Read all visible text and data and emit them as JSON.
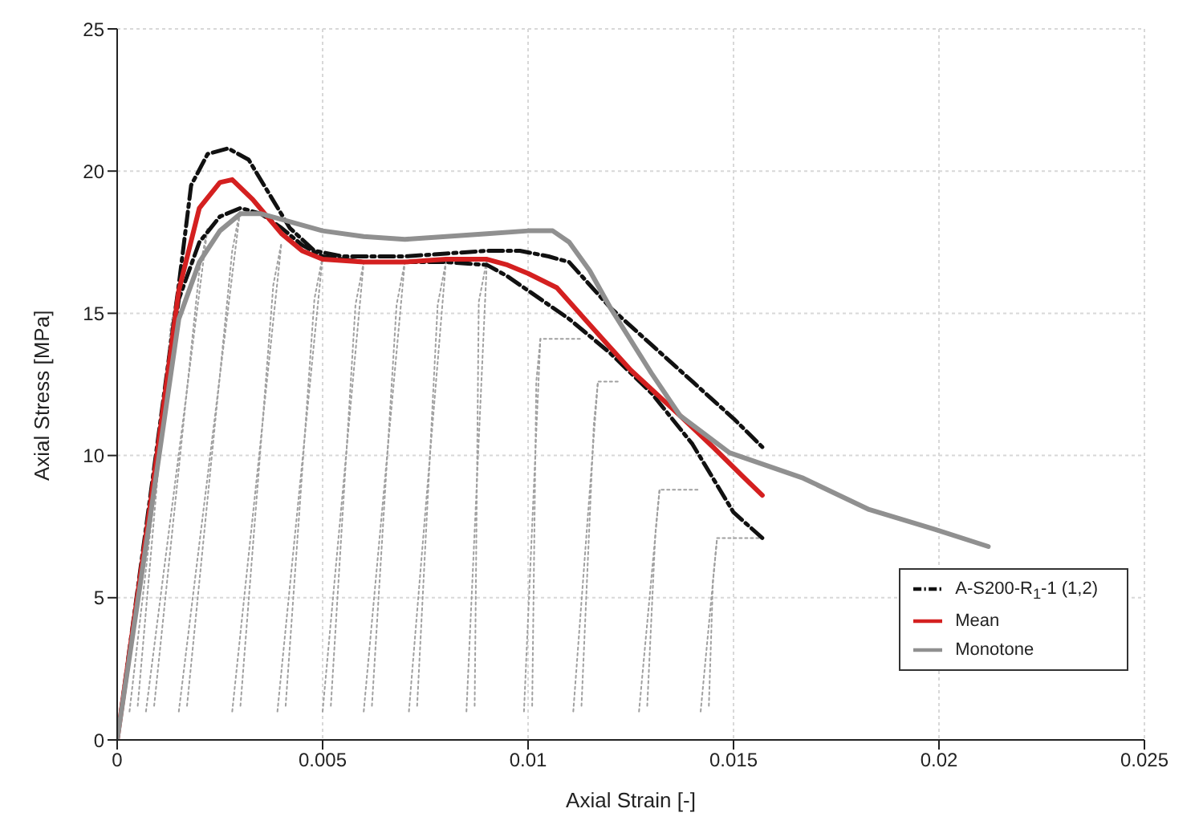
{
  "chart_data": {
    "type": "line",
    "xlabel": "Axial Strain [-]",
    "ylabel": "Axial Stress [MPa]",
    "xlim": [
      0,
      0.025
    ],
    "xticks": [
      0,
      0.005,
      0.01,
      0.015,
      0.02,
      0.025
    ],
    "ylim": [
      0,
      25
    ],
    "yticks": [
      0,
      5,
      10,
      15,
      20,
      25
    ],
    "grid": true,
    "legend": "bottom right",
    "marker": "none",
    "series": [
      {
        "color": "#a0a0a0",
        "line_style": "dotted",
        "x": [
          0.0003,
          0.0015
        ],
        "values": [
          1,
          16
        ]
      },
      {
        "color": "#a0a0a0",
        "line_style": "dotted",
        "x": [
          0.0005,
          0.0013,
          0.0015
        ],
        "values": [
          1.2,
          14.5,
          16
        ]
      },
      {
        "color": "#a0a0a0",
        "line_style": "dotted",
        "x": [
          0.0007,
          0.0022
        ],
        "values": [
          1,
          18
        ]
      },
      {
        "color": "#a0a0a0",
        "line_style": "dotted",
        "x": [
          0.0009,
          0.002,
          0.0022
        ],
        "values": [
          1.2,
          16.5,
          18
        ]
      },
      {
        "color": "#a0a0a0",
        "line_style": "dotted",
        "x": [
          0.0015,
          0.003
        ],
        "values": [
          1,
          18.7
        ]
      },
      {
        "color": "#a0a0a0",
        "line_style": "dotted",
        "x": [
          0.0017,
          0.0028,
          0.003
        ],
        "values": [
          1.2,
          17.2,
          18.7
        ]
      },
      {
        "color": "#a0a0a0",
        "line_style": "dotted",
        "x": [
          0.0028,
          0.004
        ],
        "values": [
          1,
          17.5
        ]
      },
      {
        "color": "#a0a0a0",
        "line_style": "dotted",
        "x": [
          0.003,
          0.0038,
          0.004
        ],
        "values": [
          1.2,
          16,
          17.5
        ]
      },
      {
        "color": "#a0a0a0",
        "line_style": "dotted",
        "x": [
          0.0039,
          0.005
        ],
        "values": [
          1,
          17
        ]
      },
      {
        "color": "#a0a0a0",
        "line_style": "dotted",
        "x": [
          0.0041,
          0.0048,
          0.005
        ],
        "values": [
          1.2,
          15.5,
          17
        ]
      },
      {
        "color": "#a0a0a0",
        "line_style": "dotted",
        "x": [
          0.005,
          0.006
        ],
        "values": [
          1,
          16.8
        ]
      },
      {
        "color": "#a0a0a0",
        "line_style": "dotted",
        "x": [
          0.0052,
          0.0058,
          0.006
        ],
        "values": [
          1.2,
          15.3,
          16.8
        ]
      },
      {
        "color": "#a0a0a0",
        "line_style": "dotted",
        "x": [
          0.006,
          0.007
        ],
        "values": [
          1,
          16.8
        ]
      },
      {
        "color": "#a0a0a0",
        "line_style": "dotted",
        "x": [
          0.0062,
          0.0068,
          0.007
        ],
        "values": [
          1.2,
          15.3,
          16.8
        ]
      },
      {
        "color": "#a0a0a0",
        "line_style": "dotted",
        "x": [
          0.0071,
          0.008
        ],
        "values": [
          1,
          16.8
        ]
      },
      {
        "color": "#a0a0a0",
        "line_style": "dotted",
        "x": [
          0.0073,
          0.0078,
          0.008
        ],
        "values": [
          1.2,
          15.3,
          16.8
        ]
      },
      {
        "color": "#a0a0a0",
        "line_style": "dotted",
        "x": [
          0.0085,
          0.009
        ],
        "values": [
          1,
          16.9
        ]
      },
      {
        "color": "#a0a0a0",
        "line_style": "dotted",
        "x": [
          0.0087,
          0.0088,
          0.009
        ],
        "values": [
          1.2,
          15.4,
          16.9
        ]
      },
      {
        "color": "#a0a0a0",
        "line_style": "dotted",
        "x": [
          0.0099,
          0.0103,
          0.0113
        ],
        "values": [
          1,
          14.1,
          14.1
        ]
      },
      {
        "color": "#a0a0a0",
        "line_style": "dotted",
        "x": [
          0.0101,
          0.0102,
          0.0103
        ],
        "values": [
          1.2,
          12.6,
          14.1
        ]
      },
      {
        "color": "#a0a0a0",
        "line_style": "dotted",
        "x": [
          0.0111,
          0.0117,
          0.0122
        ],
        "values": [
          1,
          12.6,
          12.6
        ]
      },
      {
        "color": "#a0a0a0",
        "line_style": "dotted",
        "x": [
          0.0113,
          0.0116,
          0.0117
        ],
        "values": [
          1.2,
          11.1,
          12.6
        ]
      },
      {
        "color": "#a0a0a0",
        "line_style": "dotted",
        "x": [
          0.0127,
          0.0132,
          0.0142
        ],
        "values": [
          1,
          8.8,
          8.8
        ]
      },
      {
        "color": "#a0a0a0",
        "line_style": "dotted",
        "x": [
          0.0129,
          0.0131,
          0.0132
        ],
        "values": [
          1.2,
          7.3,
          8.8
        ]
      },
      {
        "color": "#a0a0a0",
        "line_style": "dotted",
        "x": [
          0.0142,
          0.0146,
          0.0157
        ],
        "values": [
          1,
          7.1,
          7.1
        ]
      },
      {
        "color": "#a0a0a0",
        "line_style": "dotted",
        "x": [
          0.0144,
          0.0145,
          0.0146
        ],
        "values": [
          1.2,
          5.6,
          7.1
        ]
      },
      {
        "name": "A-S200-R$_{1}$-1 (1,2)",
        "color": "#111111",
        "line_style": "dashed",
        "x": [
          0,
          0.0008,
          0.0015,
          0.0018,
          0.0022,
          0.0027,
          0.0032,
          0.0037,
          0.0042,
          0.0048,
          0.0055,
          0.007,
          0.008,
          0.009,
          0.0098,
          0.0105,
          0.011,
          0.0115,
          0.012,
          0.013,
          0.014,
          0.015,
          0.0157
        ],
        "values": [
          0,
          8.5,
          16,
          19.5,
          20.6,
          20.8,
          20.4,
          19.2,
          18,
          17.2,
          17,
          17,
          17.1,
          17.2,
          17.2,
          17,
          16.8,
          16,
          15.2,
          13.9,
          12.6,
          11.3,
          10.3
        ]
      },
      {
        "color": "#111111",
        "line_style": "dashed",
        "x": [
          0,
          0.0008,
          0.0015,
          0.002,
          0.0025,
          0.003,
          0.0035,
          0.004,
          0.0045,
          0.005,
          0.006,
          0.007,
          0.008,
          0.009,
          0.0095,
          0.01,
          0.011,
          0.012,
          0.013,
          0.014,
          0.0145,
          0.015,
          0.0157
        ],
        "values": [
          0,
          8,
          15.5,
          17.5,
          18.4,
          18.7,
          18.5,
          18,
          17.4,
          17,
          16.8,
          16.8,
          16.8,
          16.7,
          16.3,
          15.8,
          14.8,
          13.6,
          12.2,
          10.4,
          9.2,
          8,
          7.1
        ]
      },
      {
        "name": "Mean",
        "color": "#d42020",
        "line_style": "solid",
        "x": [
          0,
          0.0008,
          0.0015,
          0.002,
          0.0025,
          0.0028,
          0.0033,
          0.004,
          0.0045,
          0.005,
          0.006,
          0.007,
          0.008,
          0.009,
          0.0095,
          0.01,
          0.0107,
          0.0115,
          0.0125,
          0.0137,
          0.0145,
          0.0152,
          0.0157
        ],
        "values": [
          0,
          8.2,
          15.8,
          18.7,
          19.6,
          19.7,
          19,
          17.8,
          17.2,
          16.9,
          16.8,
          16.8,
          16.9,
          16.9,
          16.7,
          16.4,
          15.9,
          14.6,
          13,
          11.4,
          10.3,
          9.3,
          8.6
        ]
      },
      {
        "name": "Monotone",
        "color": "#909090",
        "line_style": "solid",
        "x": [
          0,
          0.0008,
          0.0015,
          0.002,
          0.0025,
          0.003,
          0.0035,
          0.004,
          0.005,
          0.006,
          0.007,
          0.008,
          0.009,
          0.01,
          0.0106,
          0.011,
          0.0115,
          0.012,
          0.013,
          0.0137,
          0.0149,
          0.0167,
          0.0183,
          0.0199,
          0.0212
        ],
        "values": [
          0,
          7.8,
          14.8,
          16.8,
          17.9,
          18.5,
          18.5,
          18.3,
          17.9,
          17.7,
          17.6,
          17.7,
          17.8,
          17.9,
          17.9,
          17.5,
          16.5,
          15.2,
          12.9,
          11.4,
          10.1,
          9.2,
          8.1,
          7.4,
          6.8
        ]
      }
    ]
  }
}
